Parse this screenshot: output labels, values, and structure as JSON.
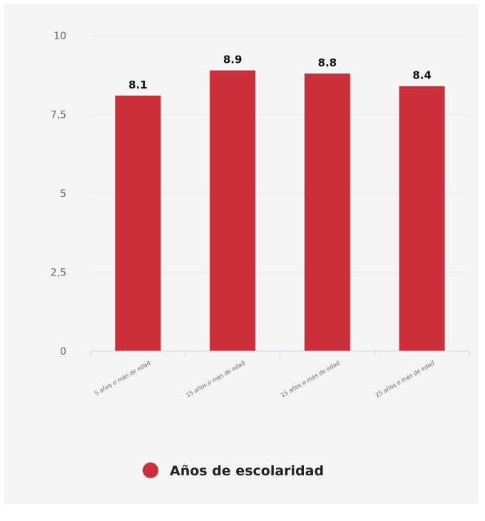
{
  "chart_data": {
    "type": "bar",
    "categories": [
      "5 años o más de edad",
      "15 años o más de edad",
      "15 años o más de edad",
      "25 años o más de edad"
    ],
    "series": [
      {
        "name": "Años de escolaridad",
        "values": [
          8.1,
          8.9,
          8.8,
          8.4
        ],
        "color": "#cc2f3a"
      }
    ],
    "data_labels": [
      "8.1",
      "8.9",
      "8.8",
      "8.4"
    ],
    "y_tick_labels": [
      "0",
      "2,5",
      "5",
      "7,5",
      "10"
    ],
    "y_ticks": [
      0,
      2.5,
      5,
      7.5,
      10
    ],
    "ylim": [
      0,
      10
    ],
    "grid": true,
    "legend": "bottom-center"
  }
}
